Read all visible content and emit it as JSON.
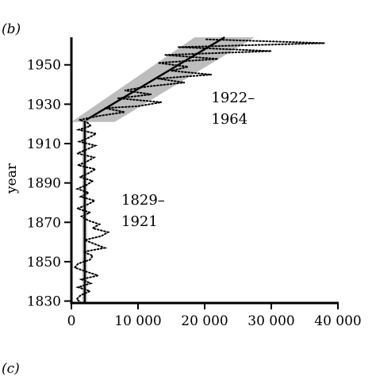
{
  "chart_data": {
    "type": "line",
    "panel_label": "(b)",
    "next_panel_label": "(c)",
    "ylabel": "year",
    "xlabel": "",
    "xlim": [
      0,
      40000
    ],
    "ylim": [
      1829,
      1964
    ],
    "x_ticks": [
      0,
      10000,
      20000,
      30000,
      40000
    ],
    "x_tick_labels": [
      "0",
      "10 000",
      "20 000",
      "30 000",
      "40 000"
    ],
    "y_ticks": [
      1830,
      1850,
      1870,
      1890,
      1910,
      1930,
      1950
    ],
    "y_tick_labels": [
      "1830",
      "1850",
      "1870",
      "1890",
      "1910",
      "1930",
      "1950"
    ],
    "annotations": [
      {
        "text_lines": [
          "1829–",
          "1921"
        ],
        "x": 7500,
        "y": 1879
      },
      {
        "text_lines": [
          "1922–",
          "1964"
        ],
        "x": 21000,
        "y": 1931
      }
    ],
    "fit_lines": [
      {
        "period": "1829–1921",
        "points": [
          [
            2000,
            1829
          ],
          [
            2000,
            1921
          ]
        ],
        "band": [
          [
            1650,
            1829
          ],
          [
            2350,
            1829
          ],
          [
            2350,
            1921
          ],
          [
            1650,
            1921
          ]
        ]
      },
      {
        "period": "1922–1964",
        "points": [
          [
            2200,
            1922
          ],
          [
            23000,
            1964
          ]
        ],
        "band": [
          [
            0,
            1921
          ],
          [
            6500,
            1921
          ],
          [
            27500,
            1964
          ],
          [
            18500,
            1964
          ]
        ]
      }
    ],
    "series": [
      {
        "style": "dotted",
        "points": [
          [
            1500,
            1829
          ],
          [
            800,
            1831
          ],
          [
            1400,
            1833
          ],
          [
            2800,
            1835
          ],
          [
            1000,
            1837
          ],
          [
            2900,
            1839
          ],
          [
            1500,
            1841
          ],
          [
            4000,
            1843
          ],
          [
            2200,
            1845
          ],
          [
            500,
            1847
          ],
          [
            1000,
            1849
          ],
          [
            2800,
            1851
          ],
          [
            3200,
            1853
          ],
          [
            1800,
            1855
          ],
          [
            5000,
            1857
          ],
          [
            3500,
            1859
          ],
          [
            2000,
            1861
          ],
          [
            4500,
            1863
          ],
          [
            5500,
            1865
          ],
          [
            3200,
            1867
          ],
          [
            4200,
            1869
          ],
          [
            2500,
            1871
          ],
          [
            1500,
            1873
          ],
          [
            2800,
            1875
          ],
          [
            900,
            1877
          ],
          [
            2400,
            1879
          ],
          [
            3500,
            1881
          ],
          [
            1400,
            1883
          ],
          [
            2600,
            1885
          ],
          [
            900,
            1887
          ],
          [
            2300,
            1889
          ],
          [
            3200,
            1891
          ],
          [
            1300,
            1893
          ],
          [
            2600,
            1895
          ],
          [
            3600,
            1897
          ],
          [
            1000,
            1899
          ],
          [
            2400,
            1901
          ],
          [
            3400,
            1903
          ],
          [
            900,
            1905
          ],
          [
            2300,
            1907
          ],
          [
            3600,
            1909
          ],
          [
            1200,
            1911
          ],
          [
            2600,
            1913
          ],
          [
            3700,
            1915
          ],
          [
            1100,
            1917
          ],
          [
            2900,
            1919
          ],
          [
            2300,
            1921
          ],
          [
            1200,
            1922
          ],
          [
            4000,
            1924
          ],
          [
            8000,
            1926
          ],
          [
            5000,
            1928
          ],
          [
            10000,
            1929
          ],
          [
            13500,
            1931
          ],
          [
            7000,
            1933
          ],
          [
            12000,
            1935
          ],
          [
            8000,
            1937
          ],
          [
            11500,
            1939
          ],
          [
            17000,
            1941
          ],
          [
            13000,
            1943
          ],
          [
            21000,
            1945
          ],
          [
            15000,
            1947
          ],
          [
            17500,
            1949
          ],
          [
            13000,
            1951
          ],
          [
            22000,
            1953
          ],
          [
            14000,
            1955
          ],
          [
            30000,
            1957
          ],
          [
            16000,
            1959
          ],
          [
            38000,
            1961
          ],
          [
            20000,
            1963
          ]
        ]
      }
    ]
  }
}
